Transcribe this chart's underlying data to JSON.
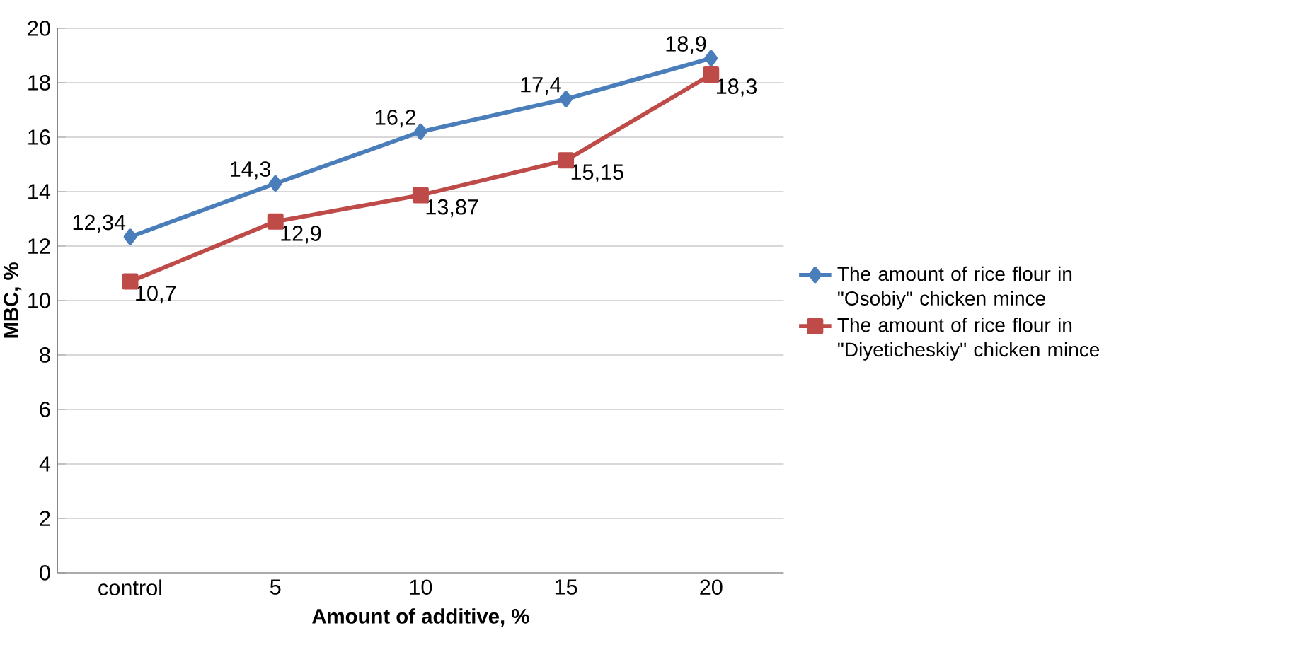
{
  "chart_data": {
    "type": "line",
    "xlabel": "Amount of additive, %",
    "ylabel": "MBC, %",
    "categories": [
      "control",
      "5",
      "10",
      "15",
      "20"
    ],
    "series": [
      {
        "name": "The amount of rice flour in \"Osobiy\" chicken mince",
        "color": "#4a7ebb",
        "marker": "diamond",
        "values": [
          12.34,
          14.3,
          16.2,
          17.4,
          18.9
        ],
        "value_labels": [
          "12,34",
          "14,3",
          "16,2",
          "17,4",
          "18,9"
        ]
      },
      {
        "name": "The amount of rice flour in \"Diyeticheskiy\" chicken mince",
        "color": "#be4b48",
        "marker": "square",
        "values": [
          10.7,
          12.9,
          13.87,
          15.15,
          18.3
        ],
        "value_labels": [
          "10,7",
          "12,9",
          "13,87",
          "15,15",
          "18,3"
        ]
      }
    ],
    "ylim": [
      0,
      20
    ],
    "yticks": [
      0,
      2,
      4,
      6,
      8,
      10,
      12,
      14,
      16,
      18,
      20
    ],
    "grid": "y",
    "legend": "right",
    "line_style": "solid"
  }
}
